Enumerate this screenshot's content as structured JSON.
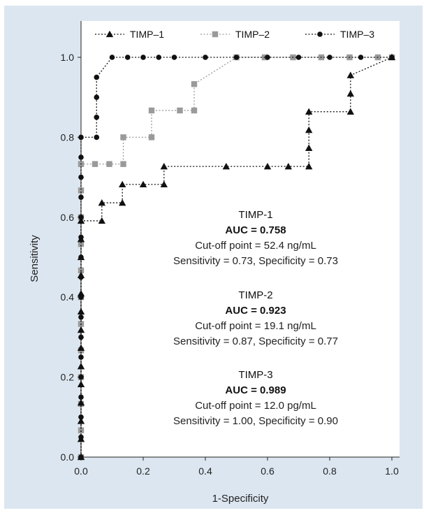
{
  "chart_data": {
    "type": "line",
    "xlabel": "1-Specificity",
    "ylabel": "Sensitivity",
    "xlim": [
      0.0,
      1.0
    ],
    "ylim": [
      0.0,
      1.0
    ],
    "x_ticks": [
      "0.0",
      "0.2",
      "0.4",
      "0.6",
      "0.8",
      "1.0"
    ],
    "y_ticks": [
      "0.0",
      "0.2",
      "0.4",
      "0.6",
      "0.8",
      "1.0"
    ],
    "grid": false,
    "legend_position": "top",
    "series": [
      {
        "name": "TIMP–1",
        "color": "#111111",
        "marker": "triangle",
        "points": [
          [
            0,
            0
          ],
          [
            0,
            0.045
          ],
          [
            0,
            0.09
          ],
          [
            0,
            0.136
          ],
          [
            0,
            0.182
          ],
          [
            0,
            0.227
          ],
          [
            0,
            0.273
          ],
          [
            0,
            0.318
          ],
          [
            0,
            0.364
          ],
          [
            0,
            0.409
          ],
          [
            0,
            0.455
          ],
          [
            0,
            0.5
          ],
          [
            0,
            0.545
          ],
          [
            0,
            0.591
          ],
          [
            0.067,
            0.591
          ],
          [
            0.067,
            0.636
          ],
          [
            0.133,
            0.636
          ],
          [
            0.133,
            0.682
          ],
          [
            0.2,
            0.682
          ],
          [
            0.267,
            0.682
          ],
          [
            0.267,
            0.727
          ],
          [
            0.467,
            0.727
          ],
          [
            0.6,
            0.727
          ],
          [
            0.667,
            0.727
          ],
          [
            0.733,
            0.727
          ],
          [
            0.733,
            0.773
          ],
          [
            0.733,
            0.818
          ],
          [
            0.733,
            0.864
          ],
          [
            0.867,
            0.864
          ],
          [
            0.867,
            0.909
          ],
          [
            0.867,
            0.955
          ],
          [
            1.0,
            1.0
          ]
        ]
      },
      {
        "name": "TIMP–2",
        "color": "#9a9a9a",
        "marker": "square",
        "points": [
          [
            0,
            0
          ],
          [
            0,
            0.067
          ],
          [
            0,
            0.133
          ],
          [
            0,
            0.2
          ],
          [
            0,
            0.267
          ],
          [
            0,
            0.333
          ],
          [
            0,
            0.4
          ],
          [
            0,
            0.467
          ],
          [
            0,
            0.533
          ],
          [
            0,
            0.6
          ],
          [
            0,
            0.667
          ],
          [
            0,
            0.733
          ],
          [
            0.045,
            0.733
          ],
          [
            0.091,
            0.733
          ],
          [
            0.136,
            0.733
          ],
          [
            0.136,
            0.8
          ],
          [
            0.227,
            0.8
          ],
          [
            0.227,
            0.867
          ],
          [
            0.318,
            0.867
          ],
          [
            0.364,
            0.867
          ],
          [
            0.364,
            0.933
          ],
          [
            0.5,
            1.0
          ],
          [
            0.591,
            1.0
          ],
          [
            0.682,
            1.0
          ],
          [
            0.773,
            1.0
          ],
          [
            0.864,
            1.0
          ],
          [
            0.955,
            1.0
          ],
          [
            1.0,
            1.0
          ]
        ]
      },
      {
        "name": "TIMP–3",
        "color": "#111111",
        "marker": "circle",
        "points": [
          [
            0,
            0
          ],
          [
            0,
            0.05
          ],
          [
            0,
            0.1
          ],
          [
            0,
            0.15
          ],
          [
            0,
            0.2
          ],
          [
            0,
            0.25
          ],
          [
            0,
            0.3
          ],
          [
            0,
            0.35
          ],
          [
            0,
            0.4
          ],
          [
            0,
            0.45
          ],
          [
            0,
            0.5
          ],
          [
            0,
            0.55
          ],
          [
            0,
            0.6
          ],
          [
            0,
            0.65
          ],
          [
            0,
            0.7
          ],
          [
            0,
            0.75
          ],
          [
            0,
            0.8
          ],
          [
            0.05,
            0.8
          ],
          [
            0.05,
            0.85
          ],
          [
            0.05,
            0.9
          ],
          [
            0.05,
            0.95
          ],
          [
            0.1,
            1.0
          ],
          [
            0.15,
            1.0
          ],
          [
            0.2,
            1.0
          ],
          [
            0.25,
            1.0
          ],
          [
            0.3,
            1.0
          ],
          [
            0.4,
            1.0
          ],
          [
            0.5,
            1.0
          ],
          [
            0.6,
            1.0
          ],
          [
            0.7,
            1.0
          ],
          [
            0.8,
            1.0
          ],
          [
            0.9,
            1.0
          ],
          [
            1.0,
            1.0
          ]
        ]
      }
    ],
    "annotations": [
      {
        "title": "TIMP-1",
        "auc": "AUC = 0.758",
        "cutoff": "Cut-off point = 52.4 ng/mL",
        "sens_spec": "Sensitivity = 0.73, Specificity = 0.73"
      },
      {
        "title": "TIMP-2",
        "auc": "AUC = 0.923",
        "cutoff": "Cut-off point = 19.1 ng/mL",
        "sens_spec": "Sensitivity = 0.87, Specificity = 0.77"
      },
      {
        "title": "TIMP-3",
        "auc": "AUC = 0.989",
        "cutoff": "Cut-off point = 12.0 pg/mL",
        "sens_spec": "Sensitivity = 1.00, Specificity = 0.90"
      }
    ]
  }
}
